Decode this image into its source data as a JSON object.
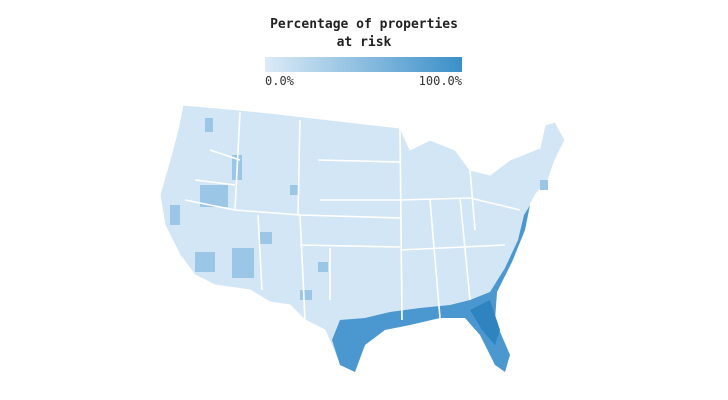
{
  "legend": {
    "title": [
      "Percentage of properties",
      "at risk"
    ],
    "ticks": [
      {
        "value": 0,
        "label": "0.0%"
      },
      {
        "value": 100,
        "label": "100.0%"
      }
    ],
    "colors": [
      "#dcebf7",
      "#3a8fc8"
    ]
  }
}
